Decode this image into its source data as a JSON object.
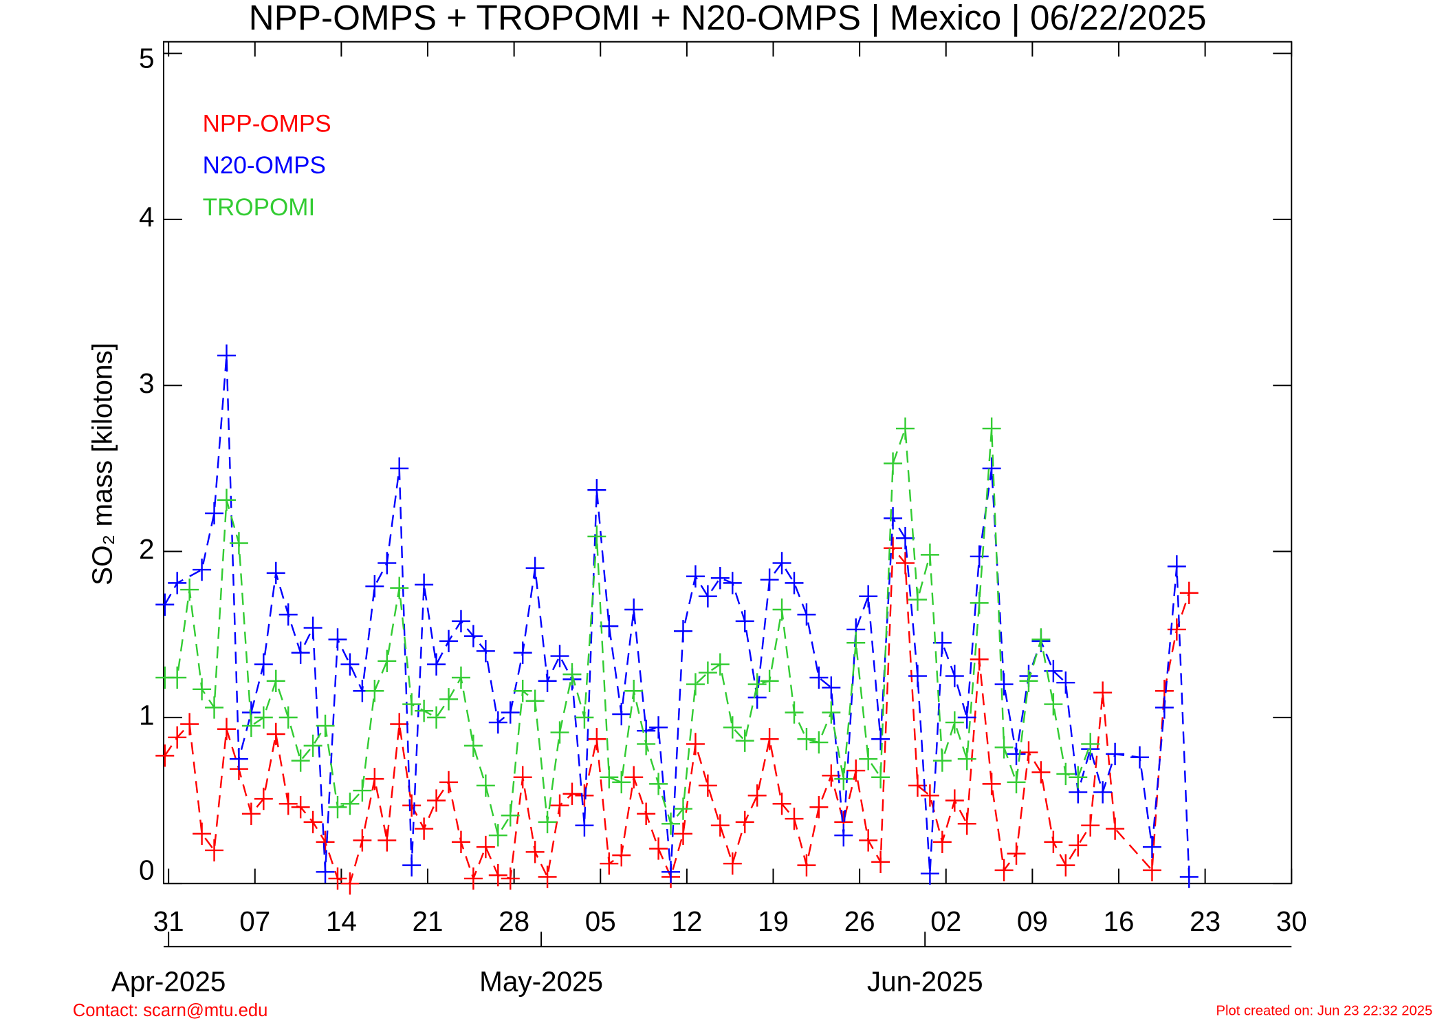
{
  "chart_data": {
    "type": "line",
    "title": "NPP-OMPS + TROPOMI + N20-OMPS | Mexico | 06/22/2025",
    "y_label": "SO₂ mass [kilotons]",
    "xlim": [
      -0.4,
      91
    ],
    "ylim": [
      0,
      5.07
    ],
    "xticks": [
      {
        "value": 0,
        "label": "31"
      },
      {
        "value": 7,
        "label": "07"
      },
      {
        "value": 14,
        "label": "14"
      },
      {
        "value": 21,
        "label": "21"
      },
      {
        "value": 28,
        "label": "28"
      },
      {
        "value": 35,
        "label": "05"
      },
      {
        "value": 42,
        "label": "12"
      },
      {
        "value": 49,
        "label": "19"
      },
      {
        "value": 56,
        "label": "26"
      },
      {
        "value": 63,
        "label": "02"
      },
      {
        "value": 70,
        "label": "09"
      },
      {
        "value": 77,
        "label": "16"
      },
      {
        "value": 84,
        "label": "23"
      },
      {
        "value": 91,
        "label": "30"
      }
    ],
    "month_ticks": [
      {
        "value": 0,
        "label": "Apr-2025"
      },
      {
        "value": 30.2,
        "label": "May-2025"
      },
      {
        "value": 61.3,
        "label": "Jun-2025"
      }
    ],
    "yticks": [
      0,
      1,
      2,
      3,
      4,
      5
    ],
    "series": [
      {
        "name": "NPP-OMPS",
        "color": "#ff0000",
        "x": [
          -0.3,
          0.7,
          1.7,
          2.7,
          3.7,
          4.7,
          5.7,
          6.7,
          7.7,
          8.7,
          9.7,
          10.7,
          11.7,
          12.7,
          13.7,
          14.7,
          15.7,
          16.7,
          17.7,
          18.7,
          19.7,
          20.7,
          21.7,
          22.7,
          23.7,
          24.7,
          25.7,
          26.7,
          27.7,
          28.7,
          29.7,
          30.7,
          31.7,
          32.7,
          33.7,
          34.7,
          35.7,
          36.7,
          37.7,
          38.7,
          39.7,
          40.7,
          41.7,
          42.7,
          43.7,
          44.7,
          45.7,
          46.7,
          47.7,
          48.7,
          49.7,
          50.7,
          51.7,
          52.7,
          53.7,
          54.7,
          55.7,
          56.7,
          57.7,
          58.7,
          59.7,
          60.7,
          61.7,
          62.7,
          63.7,
          64.7,
          65.7,
          66.7,
          67.7,
          68.7,
          69.7,
          70.7,
          71.7,
          72.7,
          73.7,
          74.7,
          75.7,
          76.7,
          79.7,
          80.7,
          81.7,
          82.7
        ],
        "values": [
          0.77,
          0.88,
          0.96,
          0.3,
          0.2,
          0.93,
          0.69,
          0.42,
          0.51,
          0.9,
          0.48,
          0.46,
          0.37,
          0.25,
          0.03,
          0.0,
          0.26,
          0.63,
          0.26,
          0.96,
          0.47,
          0.33,
          0.5,
          0.61,
          0.25,
          0.03,
          0.22,
          0.05,
          0.03,
          0.64,
          0.19,
          0.04,
          0.47,
          0.54,
          0.53,
          0.87,
          0.12,
          0.17,
          0.64,
          0.42,
          0.21,
          0.04,
          0.3,
          0.84,
          0.59,
          0.35,
          0.12,
          0.37,
          0.53,
          0.87,
          0.48,
          0.39,
          0.11,
          0.46,
          0.65,
          0.37,
          0.68,
          0.26,
          0.13,
          2.02,
          1.93,
          0.59,
          0.53,
          0.25,
          0.5,
          0.36,
          1.35,
          0.6,
          0.08,
          0.18,
          0.79,
          0.67,
          0.25,
          0.11,
          0.23,
          0.35,
          1.15,
          0.33,
          0.08,
          1.16,
          1.53,
          1.75
        ]
      },
      {
        "name": "N20-OMPS",
        "color": "#0000ff",
        "x": [
          -0.3,
          0.7,
          2.7,
          3.7,
          4.7,
          5.7,
          6.7,
          7.7,
          8.7,
          9.7,
          10.7,
          11.7,
          12.7,
          13.7,
          14.7,
          15.7,
          16.7,
          17.7,
          18.7,
          19.7,
          20.7,
          21.7,
          22.7,
          23.7,
          24.7,
          25.7,
          26.7,
          27.7,
          28.7,
          29.7,
          30.7,
          31.7,
          32.7,
          33.7,
          34.7,
          35.7,
          36.7,
          37.7,
          38.7,
          39.7,
          40.7,
          41.7,
          42.7,
          43.7,
          44.7,
          45.7,
          46.7,
          47.7,
          48.7,
          49.7,
          50.7,
          51.7,
          52.7,
          53.7,
          54.7,
          55.7,
          56.7,
          57.7,
          58.7,
          59.7,
          60.7,
          61.7,
          62.7,
          63.7,
          64.7,
          65.7,
          66.7,
          67.7,
          68.7,
          69.7,
          70.7,
          71.7,
          72.7,
          73.7,
          74.7,
          75.7,
          76.7,
          78.7,
          79.7,
          80.7,
          81.7,
          82.7
        ],
        "values": [
          1.68,
          1.81,
          1.89,
          2.23,
          3.18,
          0.75,
          1.03,
          1.32,
          1.87,
          1.62,
          1.39,
          1.54,
          0.07,
          1.47,
          1.32,
          1.16,
          1.79,
          1.93,
          2.5,
          0.11,
          1.8,
          1.32,
          1.46,
          1.58,
          1.49,
          1.4,
          0.97,
          1.03,
          1.39,
          1.9,
          1.22,
          1.37,
          1.23,
          0.35,
          2.37,
          1.55,
          1.02,
          1.65,
          0.92,
          0.94,
          0.07,
          1.52,
          1.85,
          1.73,
          1.84,
          1.81,
          1.58,
          1.12,
          1.83,
          1.93,
          1.81,
          1.62,
          1.24,
          1.18,
          0.29,
          1.53,
          1.73,
          0.87,
          2.2,
          2.08,
          1.25,
          0.06,
          1.45,
          1.25,
          1.0,
          1.97,
          2.5,
          1.2,
          0.78,
          1.25,
          1.46,
          1.28,
          1.21,
          0.55,
          0.81,
          0.55,
          0.78,
          0.76,
          0.22,
          1.06,
          1.91,
          0.04
        ]
      },
      {
        "name": "TROPOMI",
        "color": "#33cc33",
        "x": [
          -0.3,
          0.7,
          1.7,
          2.7,
          3.7,
          4.7,
          5.7,
          6.7,
          7.7,
          8.7,
          9.7,
          10.7,
          11.7,
          12.7,
          13.7,
          14.7,
          15.7,
          16.7,
          17.7,
          18.7,
          19.7,
          20.7,
          21.7,
          22.7,
          23.7,
          24.7,
          25.7,
          26.7,
          27.7,
          28.7,
          29.7,
          30.7,
          31.7,
          32.7,
          33.7,
          34.7,
          35.7,
          36.7,
          37.7,
          38.7,
          39.7,
          40.7,
          41.7,
          42.7,
          43.7,
          44.7,
          45.7,
          46.7,
          47.7,
          48.7,
          49.7,
          50.7,
          51.7,
          52.7,
          53.7,
          54.7,
          55.7,
          56.7,
          57.7,
          58.7,
          59.7,
          60.7,
          61.7,
          62.7,
          63.7,
          64.7,
          65.7,
          66.7,
          67.7,
          68.7,
          69.7,
          70.7,
          71.7,
          72.7,
          73.7,
          74.7
        ],
        "values": [
          1.24,
          1.24,
          1.77,
          1.17,
          1.06,
          2.31,
          2.05,
          0.95,
          1.0,
          1.22,
          1.0,
          0.74,
          0.83,
          0.95,
          0.46,
          0.48,
          0.56,
          1.16,
          1.34,
          1.78,
          1.08,
          1.04,
          1.0,
          1.11,
          1.24,
          0.83,
          0.59,
          0.29,
          0.41,
          1.16,
          1.1,
          0.37,
          0.91,
          1.26,
          1.0,
          2.09,
          0.64,
          0.61,
          1.16,
          0.84,
          0.6,
          0.36,
          0.45,
          1.2,
          1.27,
          1.32,
          0.94,
          0.86,
          1.2,
          1.22,
          1.65,
          1.03,
          0.87,
          0.85,
          1.03,
          0.63,
          1.45,
          0.75,
          0.64,
          2.53,
          2.74,
          1.71,
          1.98,
          0.74,
          0.97,
          0.75,
          1.69,
          2.74,
          0.82,
          0.61,
          1.22,
          1.47,
          1.08,
          0.66,
          0.64,
          0.84
        ]
      }
    ]
  },
  "footer": {
    "contact": "Contact: scarn@mtu.edu",
    "created": "Plot created on: Jun 23 22:32 2025"
  }
}
